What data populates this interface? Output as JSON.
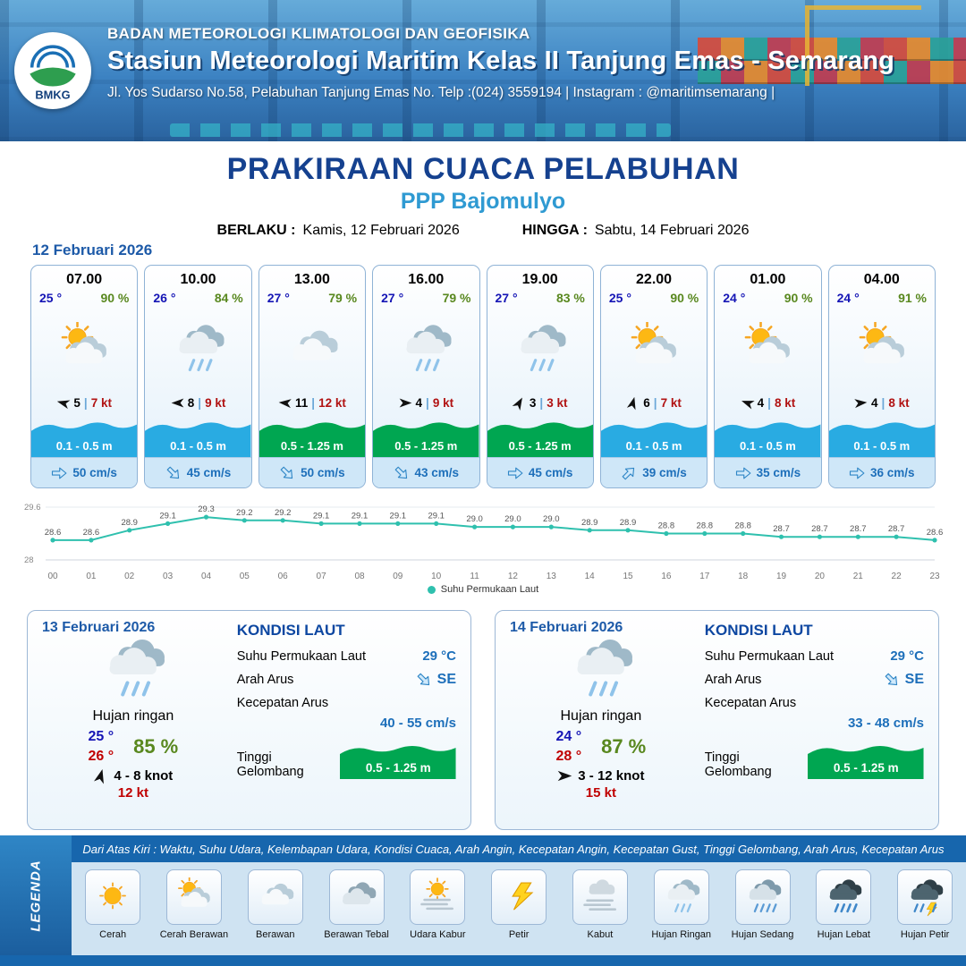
{
  "header": {
    "logo_text": "BMKG",
    "agency": "BADAN METEOROLOGI KLIMATOLOGI DAN GEOFISIKA",
    "station": "Stasiun Meteorologi Maritim Kelas II Tanjung Emas - Semarang",
    "address": "Jl. Yos Sudarso No.58, Pelabuhan Tanjung Emas No. Telp :(024) 3559194 | Instagram : @maritimsemarang |"
  },
  "title": {
    "main": "PRAKIRAAN CUACA PELABUHAN",
    "subtitle": "PPP Bajomulyo",
    "valid_from_label": "BERLAKU :",
    "valid_from": "Kamis, 12 Februari 2026",
    "valid_to_label": "HINGGA :",
    "valid_to": "Sabtu, 14 Februari 2026"
  },
  "forecast_date": "12 Februari 2026",
  "hourly": [
    {
      "time": "07.00",
      "temp": "25 °",
      "humidity": "90 %",
      "icon": "cerah-berawan",
      "wind_deg": 195,
      "wind_speed": "5",
      "gust": "7 kt",
      "wave": "0.1 - 0.5 m",
      "wave_level": "low",
      "current_deg": 0,
      "current": "50 cm/s"
    },
    {
      "time": "10.00",
      "temp": "26 °",
      "humidity": "84 %",
      "icon": "hujan-ringan",
      "wind_deg": 180,
      "wind_speed": "8",
      "gust": "9 kt",
      "wave": "0.1 - 0.5 m",
      "wave_level": "low",
      "current_deg": 45,
      "current": "45 cm/s"
    },
    {
      "time": "13.00",
      "temp": "27 °",
      "humidity": "79 %",
      "icon": "berawan",
      "wind_deg": 185,
      "wind_speed": "11",
      "gust": "12 kt",
      "wave": "0.5 - 1.25 m",
      "wave_level": "mid",
      "current_deg": 45,
      "current": "50 cm/s"
    },
    {
      "time": "16.00",
      "temp": "27 °",
      "humidity": "79 %",
      "icon": "hujan-ringan",
      "wind_deg": 0,
      "wind_speed": "4",
      "gust": "9 kt",
      "wave": "0.5 - 1.25 m",
      "wave_level": "mid",
      "current_deg": 45,
      "current": "43 cm/s"
    },
    {
      "time": "19.00",
      "temp": "27 °",
      "humidity": "83 %",
      "icon": "hujan-ringan",
      "wind_deg": 300,
      "wind_speed": "3",
      "gust": "3 kt",
      "wave": "0.5 - 1.25 m",
      "wave_level": "mid",
      "current_deg": 0,
      "current": "45 cm/s"
    },
    {
      "time": "22.00",
      "temp": "25 °",
      "humidity": "90 %",
      "icon": "cerah-berawan",
      "wind_deg": 285,
      "wind_speed": "6",
      "gust": "7 kt",
      "wave": "0.1 - 0.5 m",
      "wave_level": "low",
      "current_deg": -45,
      "current": "39 cm/s"
    },
    {
      "time": "01.00",
      "temp": "24 °",
      "humidity": "90 %",
      "icon": "cerah-berawan",
      "wind_deg": 200,
      "wind_speed": "4",
      "gust": "8 kt",
      "wave": "0.1 - 0.5 m",
      "wave_level": "low",
      "current_deg": 0,
      "current": "35 cm/s"
    },
    {
      "time": "04.00",
      "temp": "24 °",
      "humidity": "91 %",
      "icon": "cerah-berawan",
      "wind_deg": 355,
      "wind_speed": "4",
      "gust": "8 kt",
      "wave": "0.1 - 0.5 m",
      "wave_level": "low",
      "current_deg": 0,
      "current": "36 cm/s"
    }
  ],
  "chart_data": {
    "type": "line",
    "title": "Suhu Permukaan Laut",
    "x": [
      "00",
      "01",
      "02",
      "03",
      "04",
      "05",
      "06",
      "07",
      "08",
      "09",
      "10",
      "11",
      "12",
      "13",
      "14",
      "15",
      "16",
      "17",
      "18",
      "19",
      "20",
      "21",
      "22",
      "23"
    ],
    "series": [
      {
        "name": "Suhu Permukaan Laut",
        "values": [
          28.6,
          28.6,
          28.9,
          29.1,
          29.3,
          29.2,
          29.2,
          29.1,
          29.1,
          29.1,
          29.1,
          29.0,
          29.0,
          29.0,
          28.9,
          28.9,
          28.8,
          28.8,
          28.8,
          28.7,
          28.7,
          28.7,
          28.7,
          28.6
        ]
      }
    ],
    "ylim": [
      28,
      29.6
    ],
    "line_color": "#2fc0ae",
    "legend_position": "bottom",
    "grid": false
  },
  "daily": [
    {
      "date": "13 Februari 2026",
      "icon": "hujan-ringan",
      "condition": "Hujan ringan",
      "temp_min": "25 °",
      "temp_max": "26 °",
      "humidity": "85 %",
      "wind_deg": 285,
      "wind": "4  - 8 knot",
      "gust": "12 kt",
      "sea": {
        "title": "KONDISI LAUT",
        "sst_label": "Suhu Permukaan Laut",
        "sst": "29 °C",
        "current_dir_label": "Arah Arus",
        "current_dir": "SE",
        "current_deg": 45,
        "current_speed_label": "Kecepatan Arus",
        "current_speed": "40  - 55 cm/s",
        "wave_label": "Tinggi Gelombang",
        "wave": "0.5 - 1.25 m",
        "wave_color": "#00a651"
      }
    },
    {
      "date": "14 Februari 2026",
      "icon": "hujan-ringan",
      "condition": "Hujan ringan",
      "temp_min": "24 °",
      "temp_max": "28 °",
      "humidity": "87 %",
      "wind_deg": 0,
      "wind": "3  - 12 knot",
      "gust": "15 kt",
      "sea": {
        "title": "KONDISI LAUT",
        "sst_label": "Suhu Permukaan Laut",
        "sst": "29 °C",
        "current_dir_label": "Arah Arus",
        "current_dir": "SE",
        "current_deg": 45,
        "current_speed_label": "Kecepatan Arus",
        "current_speed": "33 - 48 cm/s",
        "wave_label": "Tinggi Gelombang",
        "wave": "0.5 - 1.25 m",
        "wave_color": "#00a651"
      }
    }
  ],
  "legend": {
    "title": "LEGENDA",
    "note": "Dari Atas Kiri : Waktu, Suhu Udara, Kelembapan Udara, Kondisi Cuaca, Arah Angin, Kecepatan Angin, Kecepatan Gust, Tinggi Gelombang, Arah Arus, Kecepatan Arus",
    "items": [
      {
        "label": "Cerah",
        "icon": "cerah"
      },
      {
        "label": "Cerah Berawan",
        "icon": "cerah-berawan"
      },
      {
        "label": "Berawan",
        "icon": "berawan"
      },
      {
        "label": "Berawan Tebal",
        "icon": "berawan-tebal"
      },
      {
        "label": "Udara Kabur",
        "icon": "udara-kabur"
      },
      {
        "label": "Petir",
        "icon": "petir"
      },
      {
        "label": "Kabut",
        "icon": "kabut"
      },
      {
        "label": "Hujan Ringan",
        "icon": "hujan-ringan"
      },
      {
        "label": "Hujan Sedang",
        "icon": "hujan-sedang"
      },
      {
        "label": "Hujan Lebat",
        "icon": "hujan-lebat"
      },
      {
        "label": "Hujan Petir",
        "icon": "hujan-petir"
      }
    ]
  },
  "colors": {
    "accent_blue": "#1766ad",
    "wave_low": "#29abe2",
    "wave_mid": "#00a651",
    "temp_blue": "#1515b5",
    "humidity_green": "#59881f",
    "gust_red": "#c00000",
    "sst_line": "#2fc0ae"
  }
}
